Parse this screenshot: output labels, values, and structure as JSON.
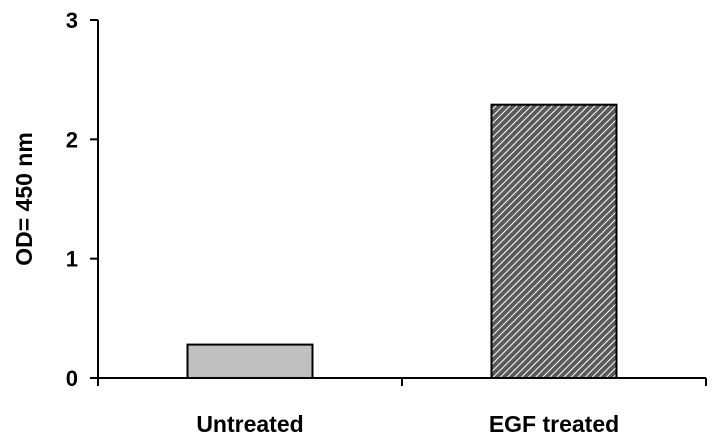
{
  "chart_data": {
    "type": "bar",
    "title": "",
    "xlabel": "",
    "ylabel": "OD= 450 nm",
    "categories": [
      "Untreated",
      "EGF treated"
    ],
    "values": [
      0.28,
      2.29
    ],
    "ylim": [
      0,
      3
    ],
    "yticks": [
      "0",
      "1",
      "2",
      "3"
    ],
    "grid": false,
    "legend": "none",
    "bar_fills": [
      "solid",
      "diagonal-hatch"
    ]
  },
  "colors": {
    "axis": "#000000",
    "bar_untreated": "#c0c0c0",
    "bar_egf_fill": "#5a5a5a",
    "bar_egf_hatch": "#ffffff",
    "bar_border": "#000000"
  }
}
